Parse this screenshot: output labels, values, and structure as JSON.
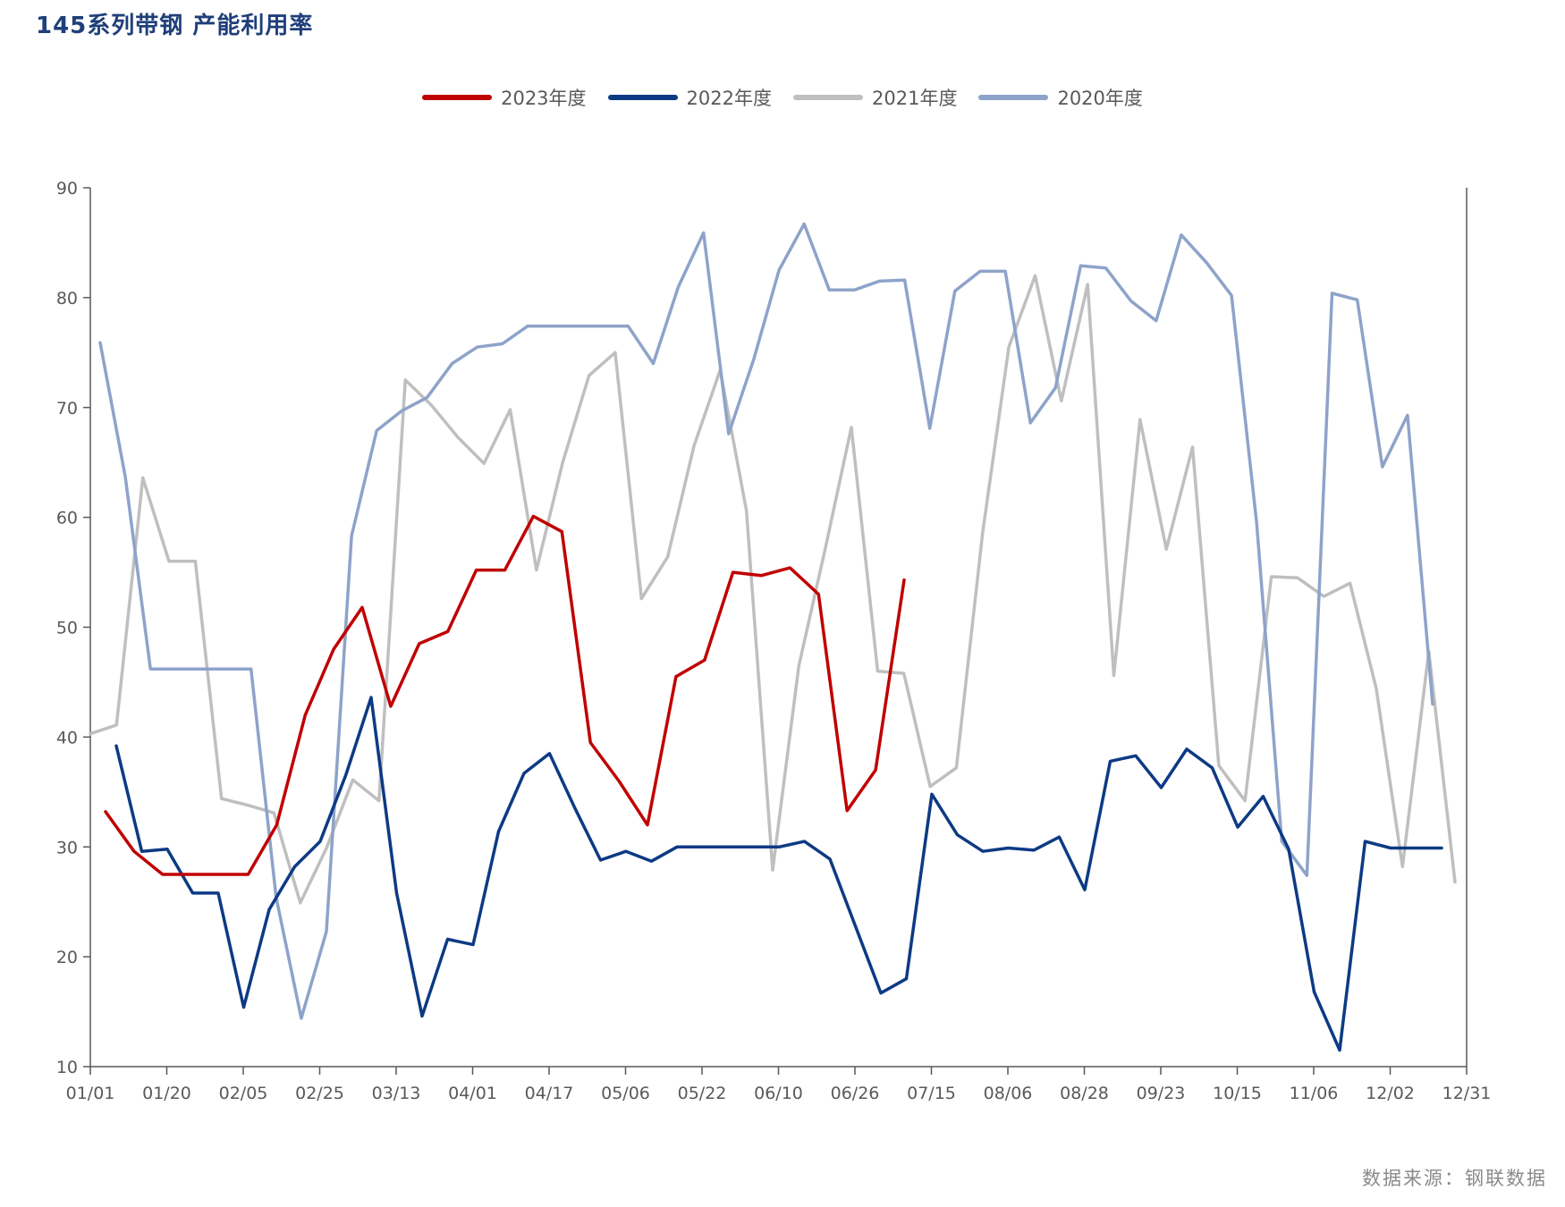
{
  "header": {
    "title": "145系列带钢 产能利用率",
    "source": "数据来源：钢联数据"
  },
  "chart_data": {
    "type": "line",
    "title": "145系列带钢 产能利用率",
    "xlabel": "",
    "ylabel": "",
    "ylim": [
      10,
      90
    ],
    "yticks": [
      10,
      20,
      30,
      40,
      50,
      60,
      70,
      80,
      90
    ],
    "xticks": [
      "01/01",
      "01/20",
      "02/05",
      "02/25",
      "03/13",
      "04/01",
      "04/17",
      "05/06",
      "05/22",
      "06/10",
      "06/26",
      "07/15",
      "08/06",
      "08/28",
      "09/23",
      "10/15",
      "11/06",
      "12/02",
      "12/31"
    ],
    "grid": false,
    "legend_position": "top",
    "series": [
      {
        "name": "2023年度",
        "color": "#c00000",
        "values": [
          33.2,
          29.6,
          27.5,
          27.5,
          27.5,
          27.5,
          32.0,
          42.0,
          48.0,
          51.8,
          42.8,
          48.5,
          49.6,
          55.2,
          55.2,
          60.1,
          58.7,
          39.5,
          36.0,
          32.0,
          45.5,
          47.0,
          55.0,
          54.7,
          55.4,
          53.0,
          33.3,
          37.0,
          54.3
        ]
      },
      {
        "name": "2022年度",
        "color": "#0d3a84",
        "values": [
          39.2,
          29.6,
          29.8,
          25.8,
          25.8,
          15.4,
          24.3,
          28.2,
          30.5,
          36.5,
          43.6,
          25.8,
          14.6,
          21.6,
          21.1,
          31.4,
          36.7,
          38.5,
          33.5,
          28.8,
          29.6,
          28.7,
          30.0,
          30.0,
          30.0,
          30.0,
          30.0,
          30.5,
          28.9,
          22.8,
          16.7,
          18.0,
          34.8,
          31.1,
          29.6,
          29.9,
          29.7,
          30.9,
          26.1,
          37.8,
          38.3,
          35.4,
          38.9,
          37.2,
          31.8,
          34.6,
          29.8,
          16.8,
          11.5,
          30.5,
          29.9,
          29.9,
          29.9
        ]
      },
      {
        "name": "2021年度",
        "color": "#bfbfbf",
        "values": [
          40.3,
          41.1,
          63.6,
          56.0,
          56.0,
          34.4,
          33.8,
          33.1,
          24.9,
          29.9,
          36.1,
          34.2,
          72.5,
          70.2,
          67.3,
          64.9,
          69.8,
          55.2,
          65.0,
          72.9,
          75.0,
          52.6,
          56.4,
          66.5,
          73.4,
          60.6,
          27.9,
          46.5,
          57.1,
          68.2,
          46.0,
          45.8,
          35.5,
          37.2,
          58.6,
          75.5,
          82.0,
          70.6,
          81.2,
          45.6,
          68.9,
          57.1,
          66.4,
          37.4,
          34.2,
          54.6,
          54.5,
          52.8,
          54.0,
          44.4,
          28.2,
          47.8,
          26.8
        ]
      },
      {
        "name": "2020年度",
        "color": "#8ea3c9",
        "values": [
          75.9,
          63.7,
          46.2,
          46.2,
          46.2,
          46.2,
          46.2,
          25.4,
          14.4,
          22.3,
          58.3,
          67.9,
          69.7,
          70.9,
          74.0,
          75.5,
          75.8,
          77.4,
          77.4,
          77.4,
          77.4,
          77.4,
          74.0,
          81.0,
          85.9,
          67.6,
          74.4,
          82.5,
          86.7,
          80.7,
          80.7,
          81.5,
          81.6,
          68.1,
          80.6,
          82.4,
          82.4,
          68.6,
          71.8,
          82.9,
          82.7,
          79.7,
          77.9,
          85.7,
          83.2,
          80.2,
          59.5,
          30.5,
          27.4,
          80.4,
          79.8,
          64.6,
          69.3,
          43.0
        ]
      }
    ]
  }
}
